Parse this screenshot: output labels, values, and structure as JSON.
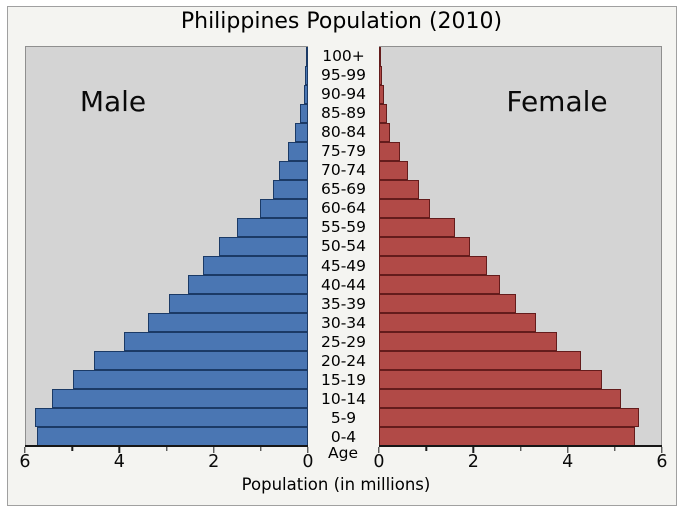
{
  "figure": {
    "title": "Philippines Population (2010)",
    "male_label": "Male",
    "female_label": "Female",
    "xlabel": "Population (in millions)",
    "age_axis_label": "Age"
  },
  "axis": {
    "left_tick_labels": [
      "6",
      "4",
      "2",
      "0"
    ],
    "right_tick_labels": [
      "0",
      "2",
      "4",
      "6"
    ],
    "minor_tick_values": [
      1,
      3,
      5
    ]
  },
  "colors": {
    "male_fill": "#4a76b3",
    "male_edge": "#1b3a66",
    "female_fill": "#b14a47",
    "female_edge": "#641c1c",
    "panel_bg": "#d4d4d4",
    "figure_bg": "#f4f4f1"
  },
  "chart_data": {
    "type": "bar",
    "subtype": "population-pyramid",
    "title": "Philippines Population (2010)",
    "xlabel": "Population (in millions)",
    "ylabel": "Age",
    "xlim": [
      0,
      6
    ],
    "x_major_ticks": [
      0,
      2,
      4,
      6
    ],
    "x_minor_ticks": [
      1,
      3,
      5
    ],
    "grid": false,
    "categories": [
      "0-4",
      "5-9",
      "10-14",
      "15-19",
      "20-24",
      "25-29",
      "30-34",
      "35-39",
      "40-44",
      "45-49",
      "50-54",
      "55-59",
      "60-64",
      "65-69",
      "70-74",
      "75-79",
      "80-84",
      "85-89",
      "90-94",
      "95-99",
      "100+"
    ],
    "series": [
      {
        "name": "Male",
        "side": "left",
        "color": "#4a76b3",
        "values": [
          5.74,
          5.79,
          5.42,
          4.98,
          4.52,
          3.89,
          3.38,
          2.92,
          2.53,
          2.21,
          1.86,
          1.47,
          0.99,
          0.71,
          0.57,
          0.38,
          0.23,
          0.12,
          0.05,
          0.02,
          0.01
        ]
      },
      {
        "name": "Female",
        "side": "right",
        "color": "#b14a47",
        "values": [
          5.43,
          5.5,
          5.13,
          4.72,
          4.28,
          3.76,
          3.3,
          2.88,
          2.55,
          2.26,
          1.9,
          1.58,
          1.05,
          0.82,
          0.58,
          0.41,
          0.19,
          0.12,
          0.06,
          0.02,
          0.01
        ]
      }
    ]
  }
}
